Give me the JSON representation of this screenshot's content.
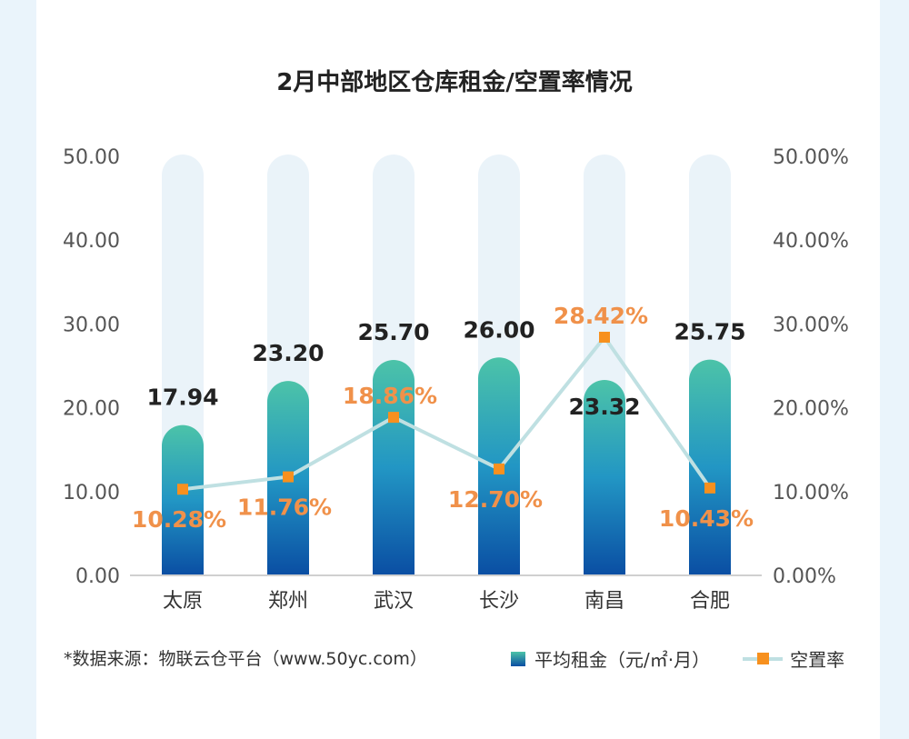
{
  "chart_data": {
    "type": "bar+line",
    "title": "2月中部地区仓库租金/空置率情况",
    "categories": [
      "太原",
      "郑州",
      "武汉",
      "长沙",
      "南昌",
      "合肥"
    ],
    "series": [
      {
        "name": "平均租金（元/㎡·月）",
        "type": "bar",
        "axis": "left",
        "values": [
          17.94,
          23.2,
          25.7,
          26.0,
          23.32,
          25.75
        ],
        "labels": [
          "17.94",
          "23.20",
          "25.70",
          "26.00",
          "23.32",
          "25.75"
        ]
      },
      {
        "name": "空置率",
        "type": "line",
        "axis": "right",
        "values": [
          10.28,
          11.76,
          18.86,
          12.7,
          28.42,
          10.43
        ],
        "labels": [
          "10.28%",
          "11.76%",
          "18.86%",
          "12.70%",
          "28.42%",
          "10.43%"
        ]
      }
    ],
    "ylim": [
      0,
      50
    ],
    "y_ticks": [
      "0.00",
      "10.00",
      "20.00",
      "30.00",
      "40.00",
      "50.00"
    ],
    "y2lim": [
      0,
      50
    ],
    "y2_ticks": [
      "0.00%",
      "10.00%",
      "20.00%",
      "30.00%",
      "40.00%",
      "50.00%"
    ],
    "legend": "bottom-right",
    "colors": {
      "bar_top": "#4cc3a8",
      "bar_bottom": "#0a4ea3",
      "track": "#eaf3f9",
      "line": "#bfe0e2",
      "marker": "#f7901e",
      "rate_label": "#f0914a"
    }
  },
  "source": "*数据来源：物联云仓平台（www.50yc.com）"
}
